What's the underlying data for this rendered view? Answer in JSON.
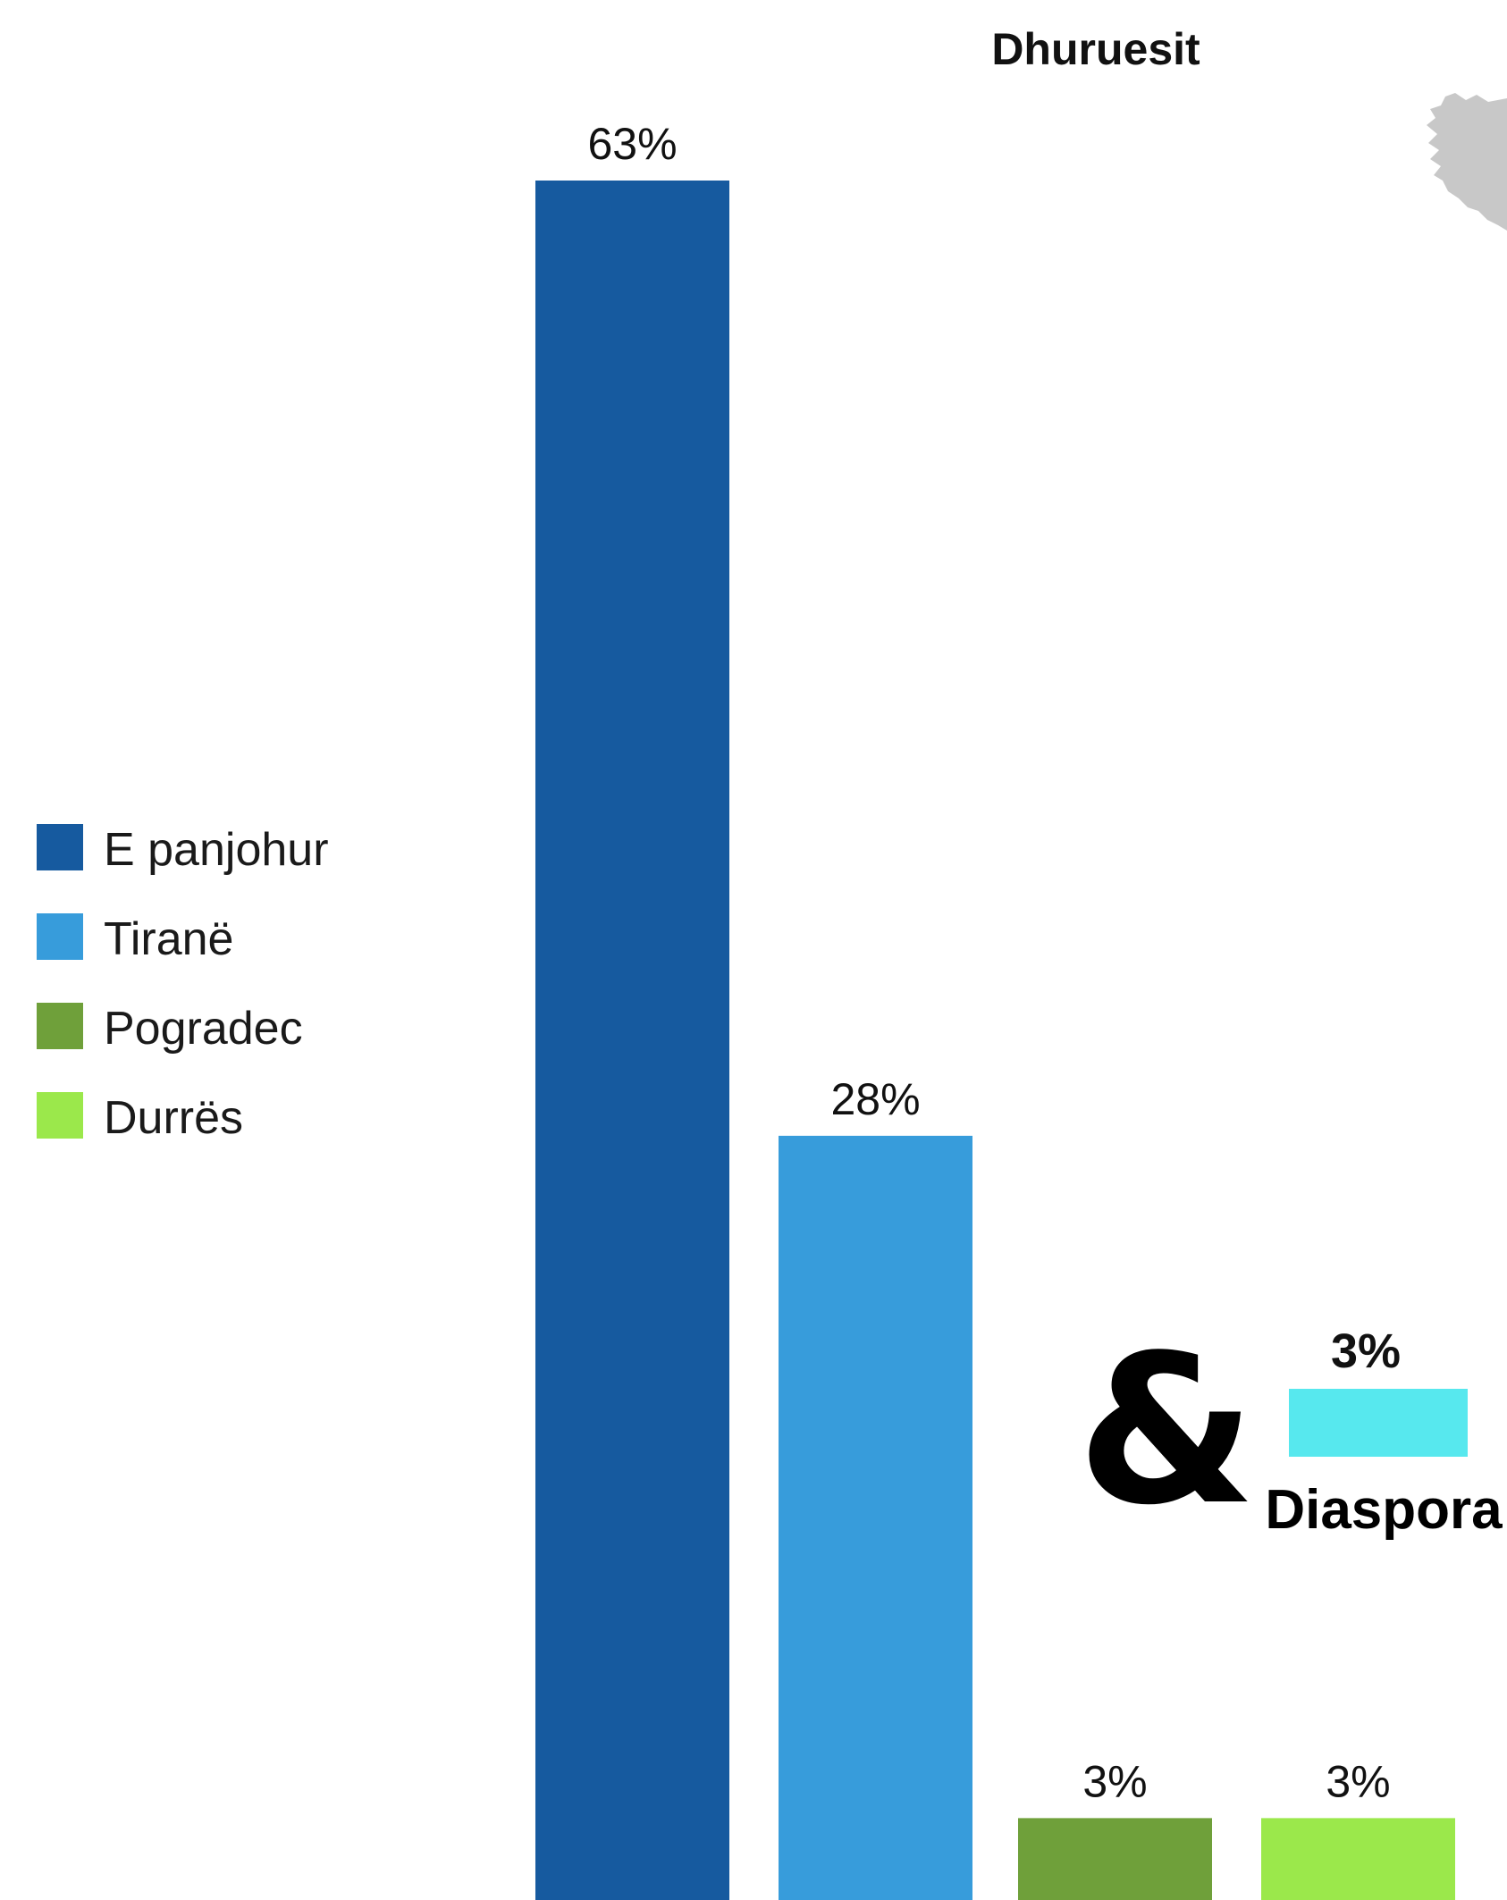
{
  "chart_data": {
    "type": "bar",
    "title": "Dhuruesit",
    "categories": [
      "E panjohur",
      "Tiranë",
      "Pogradec",
      "Durrës"
    ],
    "values": [
      63,
      28,
      3,
      3
    ],
    "value_labels": [
      "63%",
      "28%",
      "3%",
      "3%"
    ],
    "colors": [
      "#165A9F",
      "#379CDB",
      "#6FA03A",
      "#9BE84B"
    ],
    "legend": {
      "placement": "left",
      "entries": [
        "E panjohur",
        "Tiranë",
        "Pogradec",
        "Durrës"
      ]
    },
    "inset": {
      "symbol": "&",
      "category": "Diaspora",
      "value": 3,
      "value_label": "3%",
      "color": "#57E8EE"
    },
    "ylim": [
      0,
      63
    ],
    "grid": false,
    "xlabel": "",
    "ylabel": ""
  }
}
